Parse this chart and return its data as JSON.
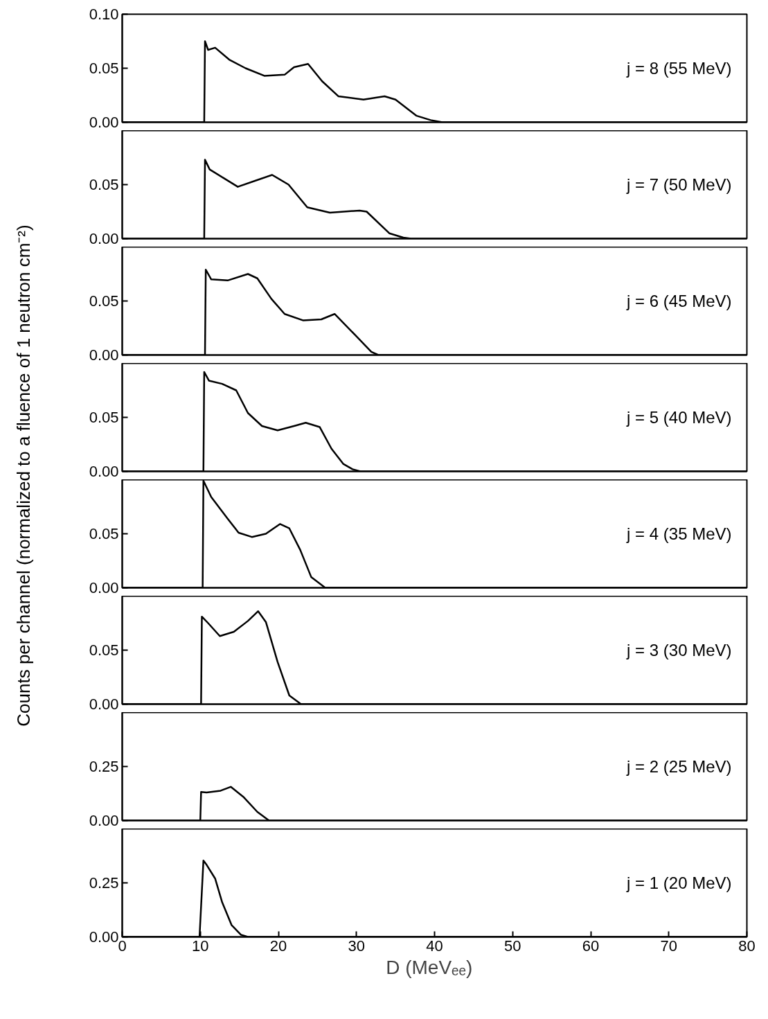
{
  "chart_data": [
    {
      "type": "line",
      "color": "#000000",
      "x": [
        0,
        10.5,
        10.6,
        11.0,
        11.9,
        13.7,
        15.8,
        18.2,
        20.8,
        22.0,
        23.8,
        25.6,
        27.7,
        30.9,
        33.6,
        35.0,
        37.7,
        39.5,
        41,
        80
      ],
      "values": [
        0,
        0,
        0.075,
        0.067,
        0.069,
        0.058,
        0.05,
        0.043,
        0.044,
        0.051,
        0.054,
        0.038,
        0.024,
        0.021,
        0.024,
        0.021,
        0.006,
        0.002,
        0,
        0
      ],
      "xlim": [
        0,
        80
      ],
      "ylim": [
        0,
        0.1
      ],
      "yticks": [
        {
          "value": 0,
          "label": "0.00"
        },
        {
          "value": 0.05,
          "label": "0.05"
        },
        {
          "value": 0.1,
          "label": "0.10"
        }
      ],
      "tick_labels": "y",
      "annotations": [
        "j = 8 (55 MeV)"
      ]
    },
    {
      "type": "line",
      "color": "#000000",
      "x": [
        0,
        10.5,
        10.6,
        11.2,
        13.0,
        14.8,
        17.2,
        19.2,
        21.3,
        23.7,
        26.6,
        30.4,
        31.3,
        34.2,
        36.0,
        37,
        80
      ],
      "values": [
        0,
        0,
        0.073,
        0.064,
        0.056,
        0.048,
        0.054,
        0.059,
        0.05,
        0.029,
        0.024,
        0.026,
        0.025,
        0.005,
        0.001,
        0,
        0
      ],
      "xlim": [
        0,
        80
      ],
      "ylim": [
        0,
        0.1
      ],
      "yticks": [
        {
          "value": 0,
          "label": "0.00"
        },
        {
          "value": 0.05,
          "label": "0.05"
        }
      ],
      "tick_labels": "y",
      "annotations": [
        "j = 7 (50 MeV)"
      ]
    },
    {
      "type": "line",
      "color": "#000000",
      "x": [
        0,
        10.6,
        10.7,
        11.4,
        13.5,
        16.1,
        17.3,
        19.1,
        20.8,
        23.2,
        25.5,
        27.2,
        29.9,
        31.9,
        32.8,
        80
      ],
      "values": [
        0,
        0,
        0.079,
        0.07,
        0.069,
        0.075,
        0.071,
        0.052,
        0.038,
        0.032,
        0.033,
        0.038,
        0.018,
        0.003,
        0,
        0
      ],
      "xlim": [
        0,
        80
      ],
      "ylim": [
        0,
        0.1
      ],
      "yticks": [
        {
          "value": 0,
          "label": "0.00"
        },
        {
          "value": 0.05,
          "label": "0.05"
        }
      ],
      "tick_labels": "y",
      "annotations": [
        "j = 6 (45 MeV)"
      ]
    },
    {
      "type": "line",
      "color": "#000000",
      "x": [
        0,
        10.4,
        10.5,
        11.1,
        12.8,
        14.6,
        16.1,
        17.9,
        19.9,
        22.0,
        23.5,
        25.3,
        26.8,
        28.3,
        29.5,
        30.5,
        80
      ],
      "values": [
        0,
        0,
        0.092,
        0.084,
        0.081,
        0.075,
        0.054,
        0.042,
        0.038,
        0.042,
        0.045,
        0.041,
        0.021,
        0.007,
        0.002,
        0,
        0
      ],
      "xlim": [
        0,
        80
      ],
      "ylim": [
        0,
        0.1
      ],
      "yticks": [
        {
          "value": 0,
          "label": "0.00"
        },
        {
          "value": 0.05,
          "label": "0.05"
        }
      ],
      "tick_labels": "y",
      "ylabel": "Counts per channel (normalized to a fluence of 1 neutron cm⁻²)",
      "annotations": [
        "j = 5 (40 MeV)"
      ]
    },
    {
      "type": "line",
      "color": "#000000",
      "x": [
        0,
        10.3,
        10.4,
        11.4,
        13.5,
        14.9,
        16.6,
        18.4,
        20.2,
        21.4,
        22.8,
        24.2,
        26.0,
        80
      ],
      "values": [
        0,
        0,
        0.099,
        0.084,
        0.064,
        0.051,
        0.047,
        0.05,
        0.059,
        0.055,
        0.035,
        0.01,
        0,
        0
      ],
      "xlim": [
        0,
        80
      ],
      "ylim": [
        0,
        0.1
      ],
      "yticks": [
        {
          "value": 0,
          "label": "0.00"
        },
        {
          "value": 0.05,
          "label": "0.05"
        }
      ],
      "tick_labels": "y",
      "annotations": [
        "j = 4 (35 MeV)"
      ]
    },
    {
      "type": "line",
      "color": "#000000",
      "x": [
        0,
        10.1,
        10.2,
        11.0,
        12.5,
        14.3,
        16.1,
        17.4,
        18.4,
        19.9,
        21.4,
        22.9,
        80
      ],
      "values": [
        0,
        0,
        0.081,
        0.075,
        0.063,
        0.067,
        0.077,
        0.086,
        0.076,
        0.039,
        0.008,
        0,
        0
      ],
      "xlim": [
        0,
        80
      ],
      "ylim": [
        0,
        0.1
      ],
      "yticks": [
        {
          "value": 0,
          "label": "0.00"
        },
        {
          "value": 0.05,
          "label": "0.05"
        }
      ],
      "tick_labels": "y",
      "annotations": [
        "j = 3 (30 MeV)"
      ]
    },
    {
      "type": "line",
      "color": "#000000",
      "x": [
        0,
        10.0,
        10.1,
        10.8,
        12.6,
        13.9,
        15.5,
        17.3,
        18.8,
        80
      ],
      "values": [
        0,
        0,
        0.132,
        0.13,
        0.138,
        0.156,
        0.11,
        0.04,
        0,
        0
      ],
      "xlim": [
        0,
        80
      ],
      "ylim": [
        0,
        0.5
      ],
      "yticks": [
        {
          "value": 0,
          "label": "0.00"
        },
        {
          "value": 0.25,
          "label": "0.25"
        }
      ],
      "tick_labels": "y",
      "annotations": [
        "j = 2 (25 MeV)"
      ]
    },
    {
      "type": "line",
      "color": "#000000",
      "x": [
        0,
        9.9,
        10.4,
        10.8,
        11.9,
        12.8,
        14.0,
        15.2,
        16.1,
        80
      ],
      "values": [
        0,
        0,
        0.353,
        0.334,
        0.27,
        0.16,
        0.055,
        0.01,
        0,
        0
      ],
      "xlim": [
        0,
        80
      ],
      "ylim": [
        0,
        0.5
      ],
      "yticks": [
        {
          "value": 0,
          "label": "0.00"
        },
        {
          "value": 0.25,
          "label": "0.25"
        }
      ],
      "xticks": [
        0,
        10,
        20,
        30,
        40,
        50,
        60,
        70,
        80
      ],
      "xlabel": "D   (MeVₑₑ)",
      "annotations": [
        "j = 1 (20 MeV)"
      ]
    }
  ]
}
